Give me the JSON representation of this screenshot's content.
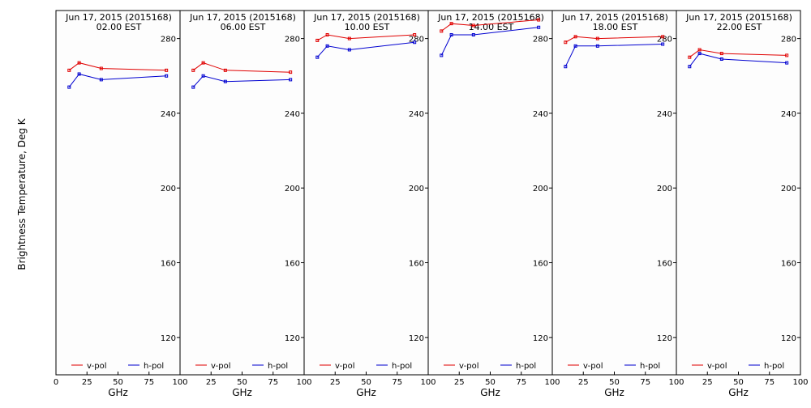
{
  "y_title": "Brightness Temperature, Deg K",
  "colors": {
    "v_pol": "#e00000",
    "h_pol": "#0000d0",
    "axis": "#000000",
    "background": "#fdfdfd"
  },
  "chart_data": [
    {
      "type": "line",
      "title": "Jun 17, 2015 (2015168)",
      "subtitle": "02.00 EST",
      "xlabel": "GHz",
      "ylabel": "Brightness Temperature, Deg K",
      "xlim": [
        0,
        100
      ],
      "ylim": [
        100,
        295
      ],
      "xticks": [
        0,
        25,
        50,
        75,
        100
      ],
      "yticks": [
        120,
        160,
        200,
        240,
        280
      ],
      "x": [
        10.65,
        18.7,
        36.5,
        89.0
      ],
      "series": [
        {
          "name": "v-pol",
          "values": [
            263,
            267,
            264,
            263
          ]
        },
        {
          "name": "h-pol",
          "values": [
            254,
            261,
            258,
            260
          ]
        }
      ],
      "legend": "bottom"
    },
    {
      "type": "line",
      "title": "Jun 17, 2015 (2015168)",
      "subtitle": "06.00 EST",
      "xlabel": "GHz",
      "xlim": [
        0,
        100
      ],
      "ylim": [
        100,
        295
      ],
      "xticks": [
        25,
        50,
        75,
        100
      ],
      "yticks": [
        120,
        160,
        200,
        240,
        280
      ],
      "x": [
        10.65,
        18.7,
        36.5,
        89.0
      ],
      "series": [
        {
          "name": "v-pol",
          "values": [
            263,
            267,
            263,
            262
          ]
        },
        {
          "name": "h-pol",
          "values": [
            254,
            260,
            257,
            258
          ]
        }
      ],
      "legend": "bottom"
    },
    {
      "type": "line",
      "title": "Jun 17, 2015 (2015168)",
      "subtitle": "10.00 EST",
      "xlabel": "GHz",
      "xlim": [
        0,
        100
      ],
      "ylim": [
        100,
        295
      ],
      "xticks": [
        25,
        50,
        75,
        100
      ],
      "yticks": [
        120,
        160,
        200,
        240,
        280
      ],
      "x": [
        10.65,
        18.7,
        36.5,
        89.0
      ],
      "series": [
        {
          "name": "v-pol",
          "values": [
            279,
            282,
            280,
            282
          ]
        },
        {
          "name": "h-pol",
          "values": [
            270,
            276,
            274,
            278
          ]
        }
      ],
      "legend": "bottom"
    },
    {
      "type": "line",
      "title": "Jun 17, 2015 (2015168)",
      "subtitle": "14.00 EST",
      "xlabel": "GHz",
      "xlim": [
        0,
        100
      ],
      "ylim": [
        100,
        295
      ],
      "xticks": [
        25,
        50,
        75,
        100
      ],
      "yticks": [
        120,
        160,
        200,
        240,
        280
      ],
      "x": [
        10.65,
        18.7,
        36.5,
        89.0
      ],
      "series": [
        {
          "name": "v-pol",
          "values": [
            284,
            288,
            287,
            290
          ]
        },
        {
          "name": "h-pol",
          "values": [
            271,
            282,
            282,
            286
          ]
        }
      ],
      "legend": "bottom"
    },
    {
      "type": "line",
      "title": "Jun 17, 2015 (2015168)",
      "subtitle": "18.00 EST",
      "xlabel": "GHz",
      "xlim": [
        0,
        100
      ],
      "ylim": [
        100,
        295
      ],
      "xticks": [
        25,
        50,
        75,
        100
      ],
      "yticks": [
        120,
        160,
        200,
        240,
        280
      ],
      "x": [
        10.65,
        18.7,
        36.5,
        89.0
      ],
      "series": [
        {
          "name": "v-pol",
          "values": [
            278,
            281,
            280,
            281
          ]
        },
        {
          "name": "h-pol",
          "values": [
            265,
            276,
            276,
            277
          ]
        }
      ],
      "legend": "bottom"
    },
    {
      "type": "line",
      "title": "Jun 17, 2015 (2015168)",
      "subtitle": "22.00 EST",
      "xlabel": "GHz",
      "xlim": [
        0,
        100
      ],
      "ylim": [
        100,
        295
      ],
      "xticks": [
        25,
        50,
        75,
        100
      ],
      "yticks": [
        120,
        160,
        200,
        240,
        280
      ],
      "x": [
        10.65,
        18.7,
        36.5,
        89.0
      ],
      "series": [
        {
          "name": "v-pol",
          "values": [
            270,
            274,
            272,
            271
          ]
        },
        {
          "name": "h-pol",
          "values": [
            265,
            272,
            269,
            267
          ]
        }
      ],
      "legend": "bottom"
    }
  ]
}
